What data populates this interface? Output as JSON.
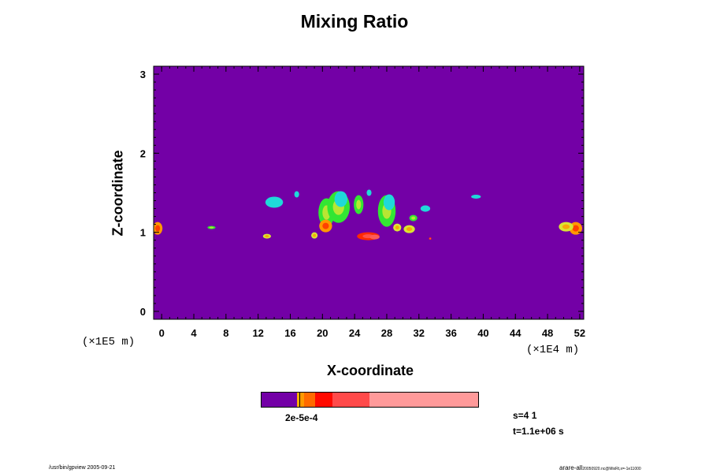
{
  "chart_data": {
    "type": "heatmap",
    "title": "Mixing Ratio",
    "xlabel": "X-coordinate",
    "ylabel": "Z-coordinate",
    "x_unit": "(×1E4 m)",
    "z_unit": "(×1E5 m)",
    "xlim": [
      -1,
      52.5
    ],
    "zlim": [
      -0.1,
      3.1
    ],
    "x_ticks": [
      0,
      4,
      8,
      12,
      16,
      20,
      24,
      28,
      32,
      36,
      40,
      44,
      48,
      52
    ],
    "z_ticks": [
      0,
      1,
      2,
      3
    ],
    "background_color": "#7300a6",
    "features": [
      {
        "x": 51.5,
        "z": 1.05,
        "rx": 0.8,
        "rz": 0.08,
        "level": 3
      },
      {
        "x": 50.3,
        "z": 1.07,
        "rx": 0.9,
        "rz": 0.06,
        "level": 2
      },
      {
        "x": 6.2,
        "z": 1.06,
        "rx": 0.5,
        "rz": 0.02,
        "level": 1
      },
      {
        "x": 13.1,
        "z": 0.95,
        "rx": 0.5,
        "rz": 0.03,
        "level": 2
      },
      {
        "x": 14.0,
        "z": 1.38,
        "rx": 1.1,
        "rz": 0.07,
        "level": 0
      },
      {
        "x": 16.8,
        "z": 1.48,
        "rx": 0.3,
        "rz": 0.04,
        "level": 0
      },
      {
        "x": 19.0,
        "z": 0.96,
        "rx": 0.4,
        "rz": 0.04,
        "level": 2
      },
      {
        "x": 20.5,
        "z": 1.25,
        "rx": 1.0,
        "rz": 0.18,
        "level": 1
      },
      {
        "x": 22.0,
        "z": 1.32,
        "rx": 1.4,
        "rz": 0.2,
        "level": 1
      },
      {
        "x": 20.4,
        "z": 1.08,
        "rx": 0.8,
        "rz": 0.08,
        "level": 3
      },
      {
        "x": 22.3,
        "z": 1.42,
        "rx": 0.8,
        "rz": 0.1,
        "level": 0
      },
      {
        "x": 24.5,
        "z": 1.35,
        "rx": 0.6,
        "rz": 0.12,
        "level": 1
      },
      {
        "x": 25.8,
        "z": 1.5,
        "rx": 0.3,
        "rz": 0.04,
        "level": 0
      },
      {
        "x": 25.7,
        "z": 0.95,
        "rx": 1.4,
        "rz": 0.05,
        "level": 4
      },
      {
        "x": 26.5,
        "z": 0.94,
        "rx": 0.6,
        "rz": 0.03,
        "level": 5
      },
      {
        "x": 28.0,
        "z": 1.27,
        "rx": 1.1,
        "rz": 0.2,
        "level": 1
      },
      {
        "x": 28.3,
        "z": 1.38,
        "rx": 0.7,
        "rz": 0.1,
        "level": 0
      },
      {
        "x": 29.3,
        "z": 1.06,
        "rx": 0.5,
        "rz": 0.05,
        "level": 2
      },
      {
        "x": 30.8,
        "z": 1.04,
        "rx": 0.7,
        "rz": 0.05,
        "level": 2
      },
      {
        "x": 31.3,
        "z": 1.18,
        "rx": 0.5,
        "rz": 0.04,
        "level": 1
      },
      {
        "x": 32.8,
        "z": 1.3,
        "rx": 0.6,
        "rz": 0.04,
        "level": 0
      },
      {
        "x": 33.4,
        "z": 0.92,
        "rx": 0.15,
        "rz": 0.015,
        "level": 4
      },
      {
        "x": 39.1,
        "z": 1.45,
        "rx": 0.6,
        "rz": 0.025,
        "level": 0
      },
      {
        "x": -0.5,
        "z": 1.05,
        "rx": 0.6,
        "rz": 0.08,
        "level": 3
      }
    ],
    "level_colors": [
      "#1fd9d9",
      "#33e633",
      "#d9e633",
      "#ff9900",
      "#ff2a00",
      "#ff5a5a"
    ]
  },
  "colorbar": {
    "label": "2e-5e-4",
    "segments": [
      {
        "color": "#7300a6",
        "fraction": 0.165
      },
      {
        "color": "#ffb000",
        "fraction": 0.01
      },
      {
        "color": "#000000",
        "fraction": 0.004
      },
      {
        "color": "#ff9900",
        "fraction": 0.018
      },
      {
        "color": "#ff6a00",
        "fraction": 0.05
      },
      {
        "color": "#ff0a00",
        "fraction": 0.08
      },
      {
        "color": "#ff4a4a",
        "fraction": 0.17
      },
      {
        "color": "#ff9a9a",
        "fraction": 0.503
      }
    ]
  },
  "info": {
    "step": "s=4 1",
    "time": "t=1.1e+06 s"
  },
  "footer": {
    "left": "/usr/bin/gpview 2005-09-21",
    "right": "arare-all",
    "right_small": "20050920.nc@MixRt,x=-1e11000"
  }
}
